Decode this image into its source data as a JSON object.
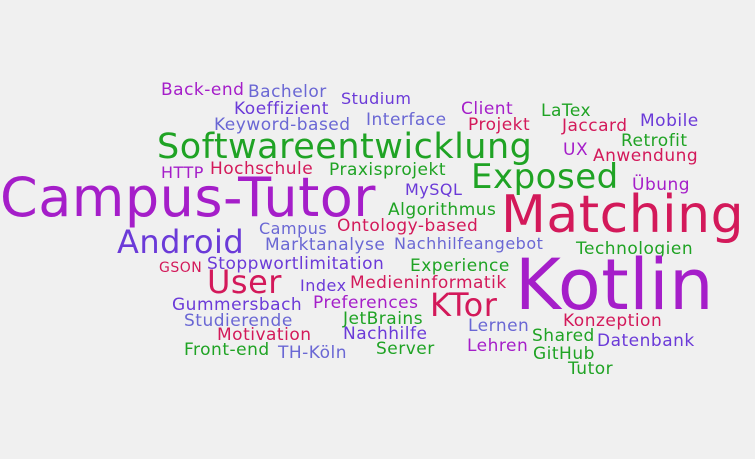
{
  "colors": {
    "purple": "#a51ec9",
    "violet": "#6b3ad8",
    "blue": "#6a67d4",
    "green": "#1fa324",
    "red": "#d3195a",
    "background": "#f0f0f0"
  },
  "words": [
    {
      "text": "Back-end",
      "color": "purple"
    },
    {
      "text": "Bachelor",
      "color": "blue"
    },
    {
      "text": "Studium",
      "color": "violet"
    },
    {
      "text": "Koeffizient",
      "color": "violet"
    },
    {
      "text": "Client",
      "color": "purple"
    },
    {
      "text": "LaTex",
      "color": "green"
    },
    {
      "text": "Mobile",
      "color": "violet"
    },
    {
      "text": "Keyword-based",
      "color": "blue"
    },
    {
      "text": "Interface",
      "color": "blue"
    },
    {
      "text": "Projekt",
      "color": "red"
    },
    {
      "text": "Jaccard",
      "color": "red"
    },
    {
      "text": "Retrofit",
      "color": "green"
    },
    {
      "text": "Softwareentwicklung",
      "color": "green"
    },
    {
      "text": "UX",
      "color": "purple"
    },
    {
      "text": "Anwendung",
      "color": "red"
    },
    {
      "text": "HTTP",
      "color": "purple"
    },
    {
      "text": "Hochschule",
      "color": "red"
    },
    {
      "text": "Praxisprojekt",
      "color": "green"
    },
    {
      "text": "Exposed",
      "color": "green"
    },
    {
      "text": "Campus-Tutor",
      "color": "purple"
    },
    {
      "text": "MySQL",
      "color": "violet"
    },
    {
      "text": "Übung",
      "color": "purple"
    },
    {
      "text": "Algorithmus",
      "color": "green"
    },
    {
      "text": "Matching",
      "color": "red"
    },
    {
      "text": "Campus",
      "color": "blue"
    },
    {
      "text": "Ontology-based",
      "color": "red"
    },
    {
      "text": "Android",
      "color": "violet"
    },
    {
      "text": "Marktanalyse",
      "color": "blue"
    },
    {
      "text": "Nachhilfeangebot",
      "color": "blue"
    },
    {
      "text": "Technologien",
      "color": "green"
    },
    {
      "text": "GSON",
      "color": "red"
    },
    {
      "text": "Stoppwortlimitation",
      "color": "violet"
    },
    {
      "text": "User",
      "color": "red"
    },
    {
      "text": "Experience",
      "color": "green"
    },
    {
      "text": "Kotlin",
      "color": "purple"
    },
    {
      "text": "Index",
      "color": "violet"
    },
    {
      "text": "Medieninformatik",
      "color": "red"
    },
    {
      "text": "KTor",
      "color": "red"
    },
    {
      "text": "Gummersbach",
      "color": "violet"
    },
    {
      "text": "Preferences",
      "color": "purple"
    },
    {
      "text": "Studierende",
      "color": "blue"
    },
    {
      "text": "JetBrains",
      "color": "green"
    },
    {
      "text": "Lernen",
      "color": "blue"
    },
    {
      "text": "Konzeption",
      "color": "red"
    },
    {
      "text": "Motivation",
      "color": "red"
    },
    {
      "text": "Nachhilfe",
      "color": "violet"
    },
    {
      "text": "Shared",
      "color": "green"
    },
    {
      "text": "Datenbank",
      "color": "violet"
    },
    {
      "text": "Front-end",
      "color": "green"
    },
    {
      "text": "TH-Köln",
      "color": "blue"
    },
    {
      "text": "Server",
      "color": "green"
    },
    {
      "text": "Lehren",
      "color": "purple"
    },
    {
      "text": "GitHub",
      "color": "green"
    },
    {
      "text": "Tutor",
      "color": "green"
    }
  ]
}
